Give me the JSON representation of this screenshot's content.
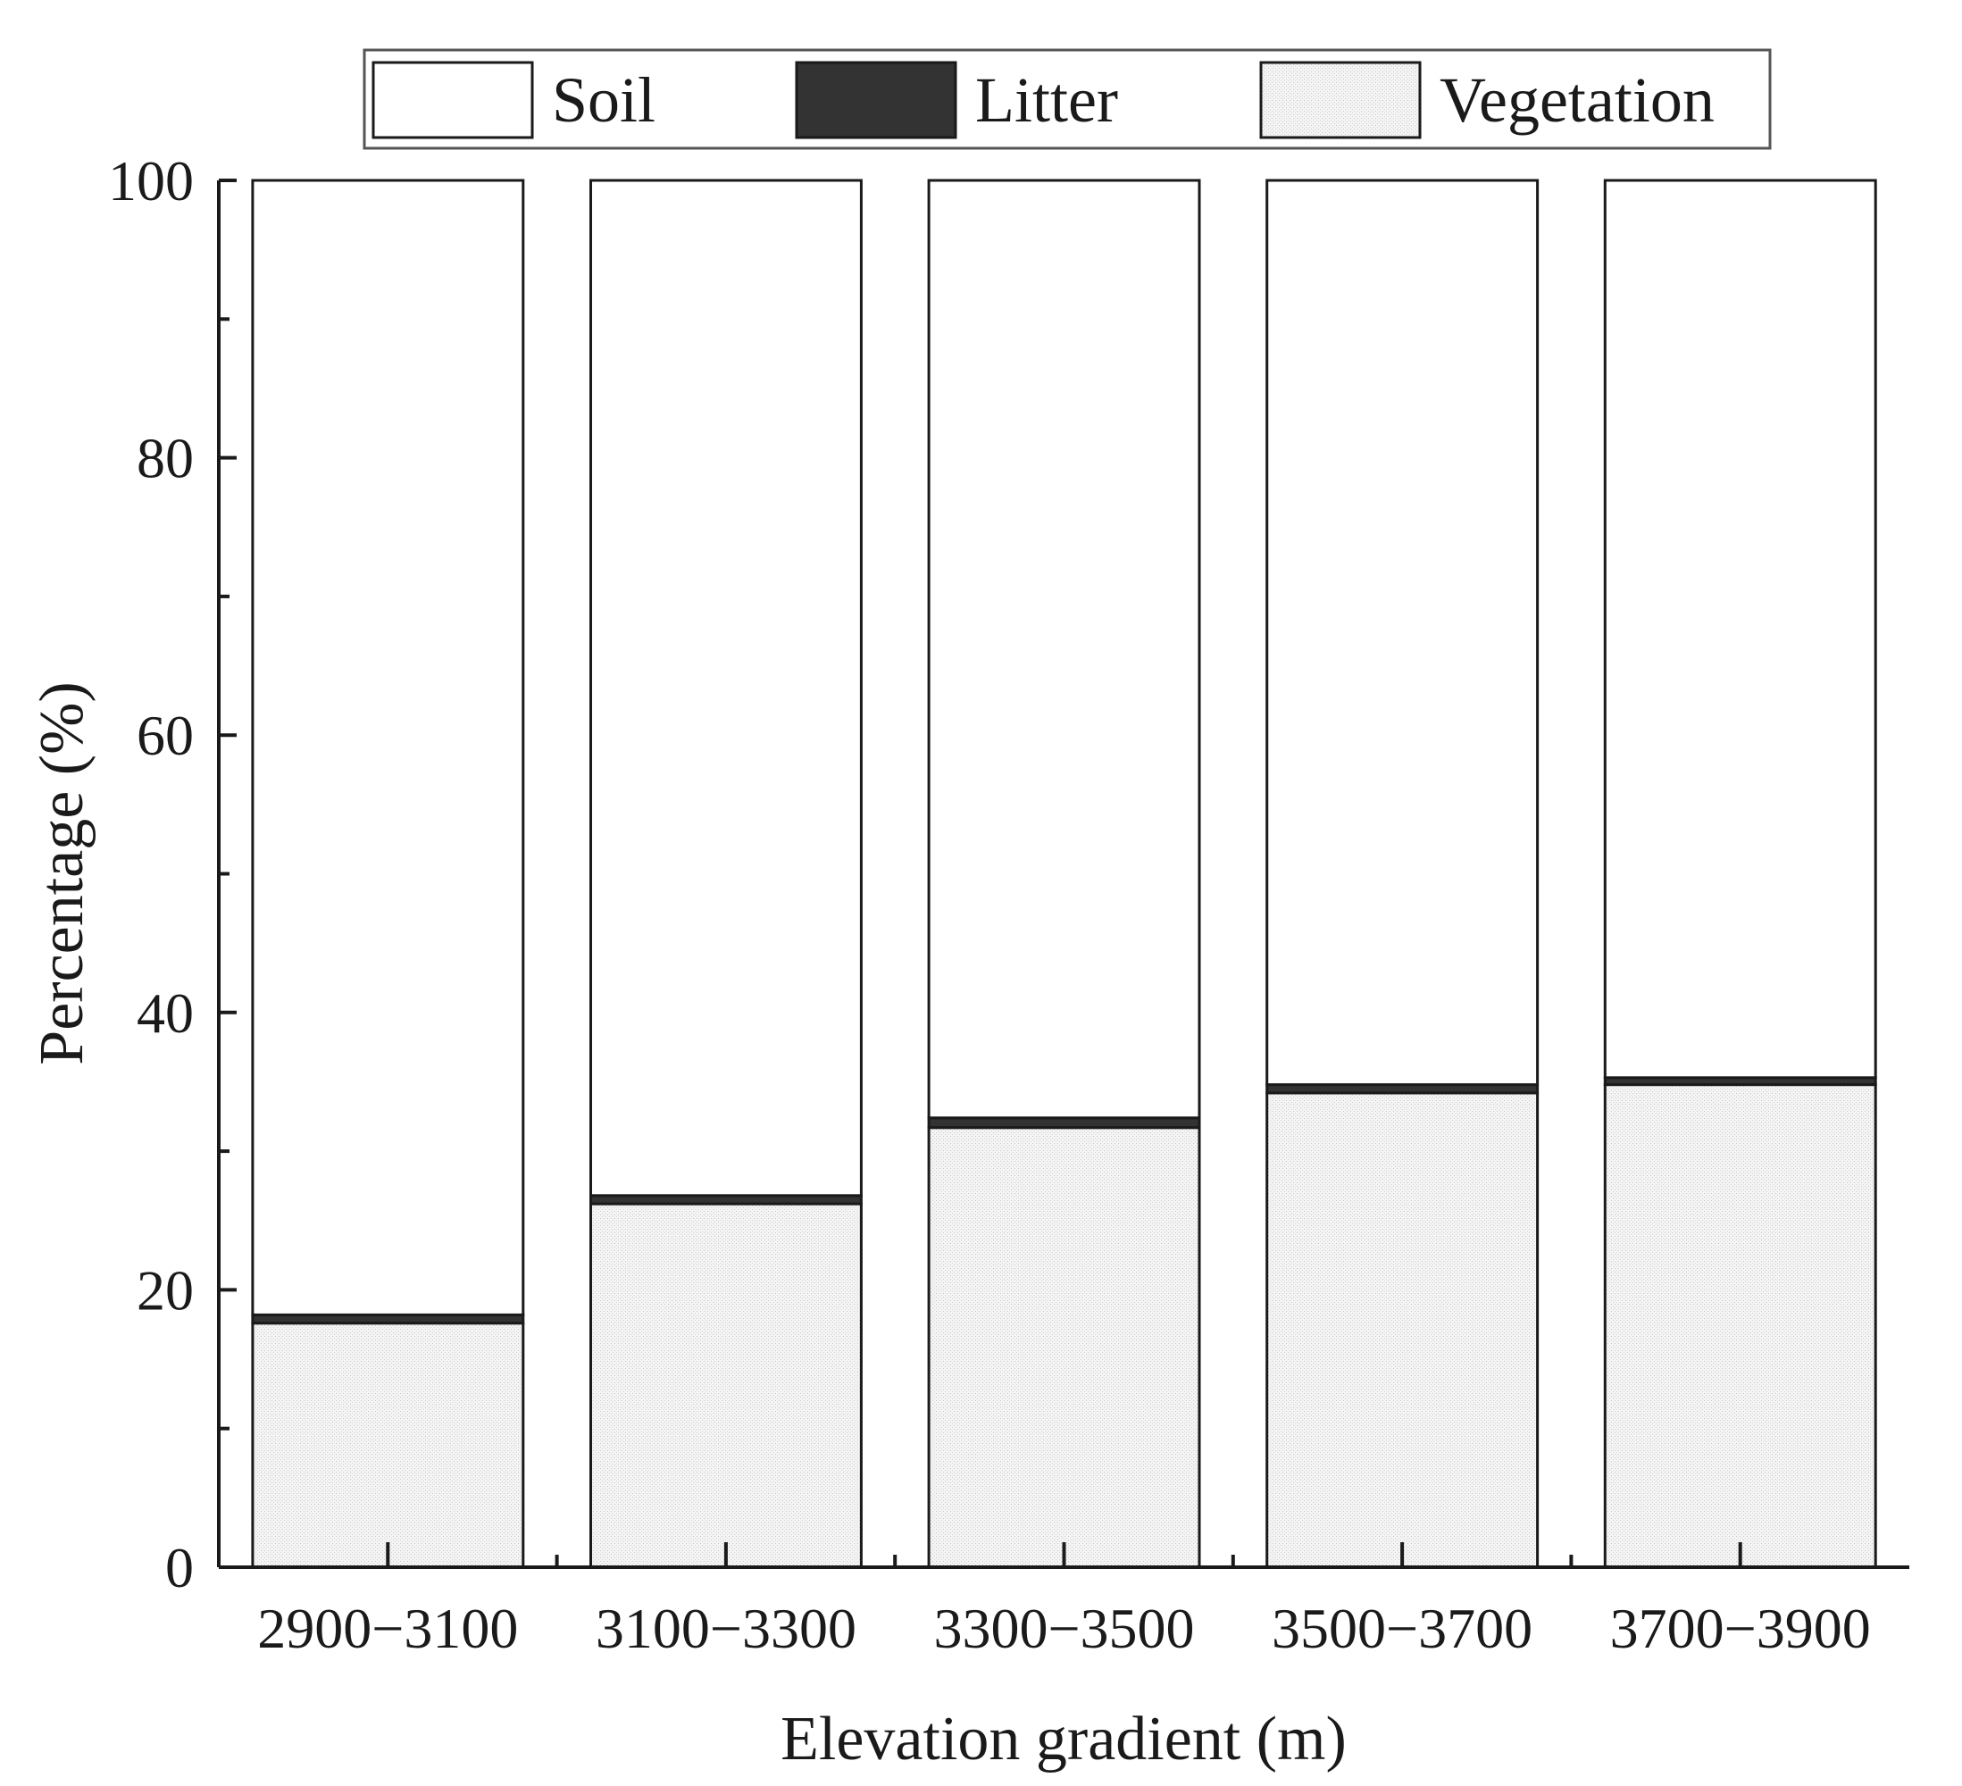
{
  "chart_data": {
    "type": "bar",
    "stacked": true,
    "categories": [
      "2900−3100",
      "3100−3300",
      "3300−3500",
      "3500−3700",
      "3700−3900"
    ],
    "series": [
      {
        "name": "Vegetation",
        "values": [
          17.6,
          26.2,
          31.7,
          34.2,
          34.8
        ],
        "color": "#f2f2f2"
      },
      {
        "name": "Litter",
        "values": [
          0.6,
          0.6,
          0.7,
          0.6,
          0.5
        ],
        "color": "#333333"
      },
      {
        "name": "Soil",
        "values": [
          81.8,
          73.2,
          67.6,
          65.2,
          64.7
        ],
        "color": "#ffffff"
      }
    ],
    "legend_order": [
      "Soil",
      "Litter",
      "Vegetation"
    ],
    "xlabel": "Elevation gradient (m)",
    "ylabel": "Percentage (%)",
    "ylim": [
      0,
      100
    ],
    "yticks": [
      0,
      20,
      40,
      60,
      80,
      100
    ],
    "grid": false,
    "legend_position": "top"
  }
}
